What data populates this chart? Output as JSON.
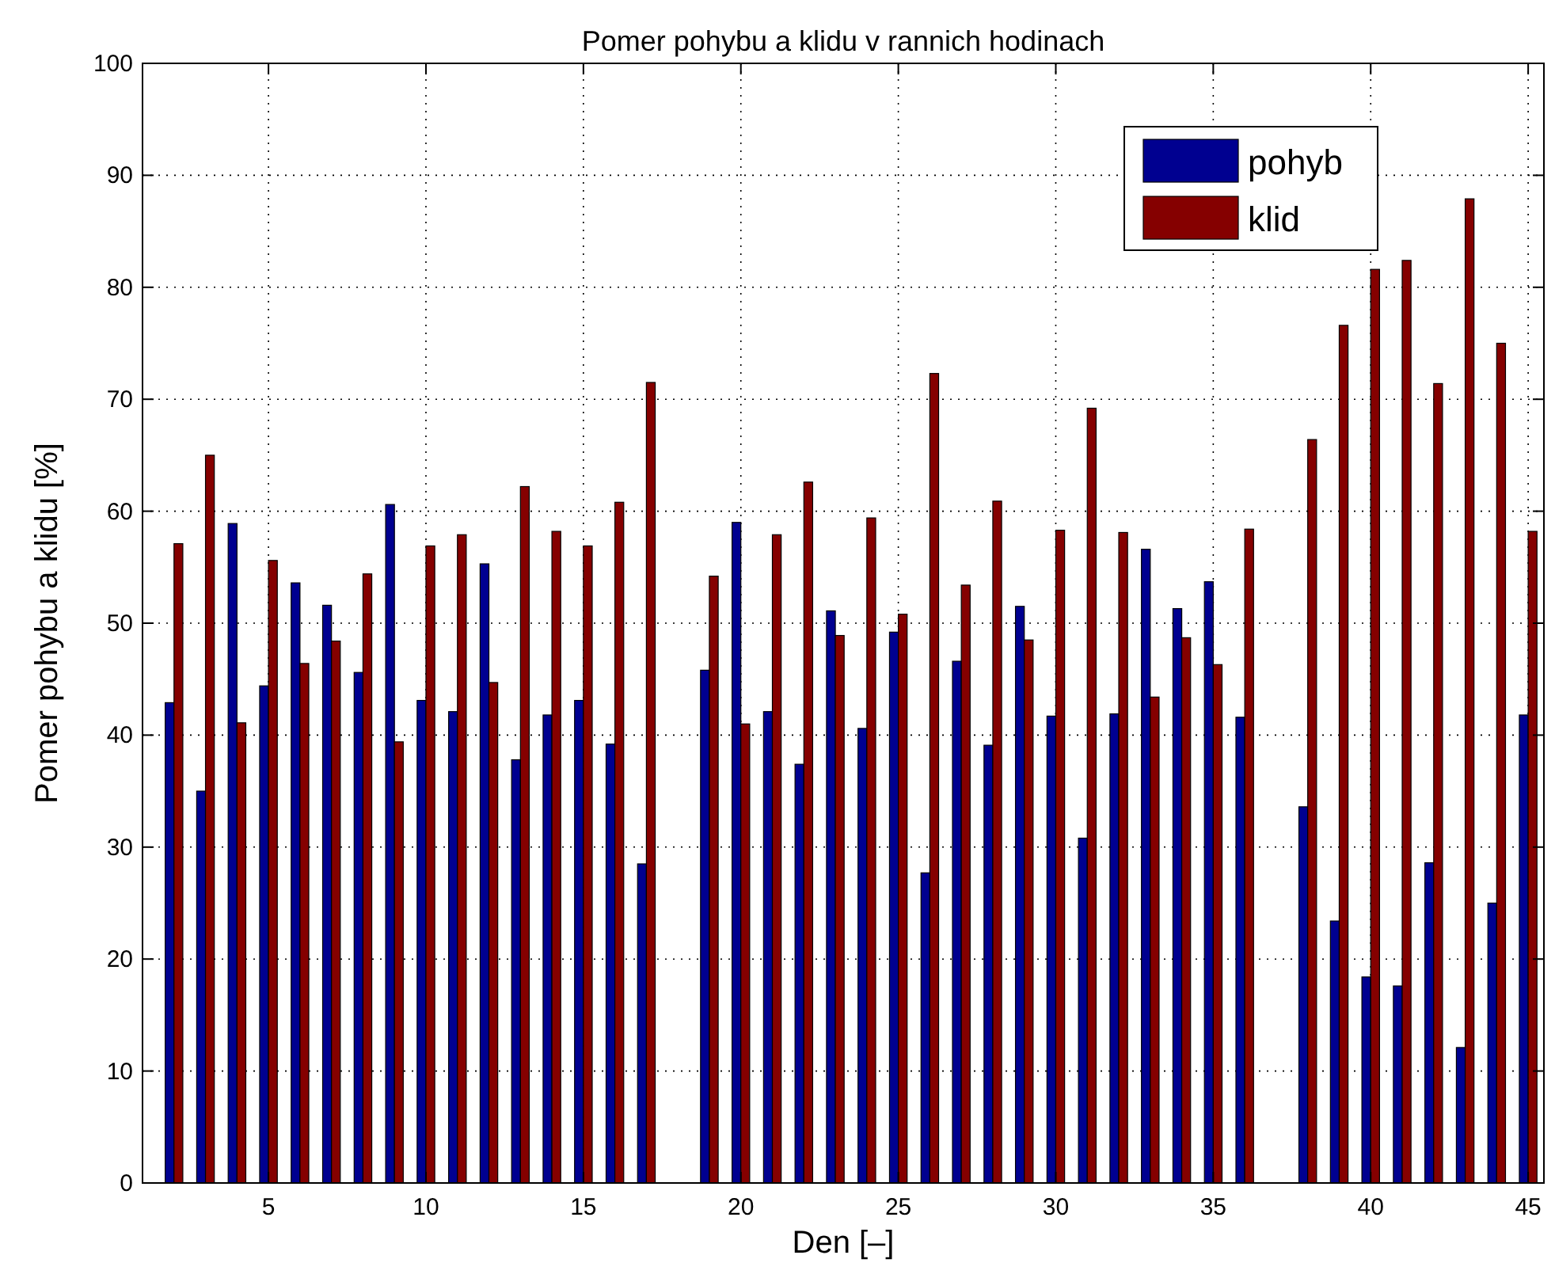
{
  "chart_data": {
    "type": "bar",
    "title": "Pomer pohybu a klidu v rannich hodinach",
    "xlabel": "Den [–]",
    "ylabel": "Pomer pohybu a klidu [%]",
    "x": [
      2,
      3,
      4,
      5,
      6,
      7,
      8,
      9,
      10,
      11,
      12,
      13,
      14,
      15,
      16,
      17,
      18,
      19,
      20,
      21,
      22,
      23,
      24,
      25,
      26,
      27,
      28,
      29,
      30,
      31,
      32,
      33,
      34,
      35,
      36,
      37,
      38,
      39,
      40,
      41,
      42,
      43,
      44,
      45
    ],
    "series": [
      {
        "name": "pohyb",
        "color": "#000090",
        "values": [
          42.9,
          35,
          58.9,
          44.4,
          53.6,
          51.6,
          45.6,
          60.6,
          43.1,
          42.1,
          55.3,
          37.8,
          41.8,
          43.1,
          39.2,
          28.5,
          0,
          45.8,
          59,
          42.1,
          37.4,
          51.1,
          40.6,
          49.2,
          27.7,
          46.6,
          39.1,
          51.5,
          41.7,
          30.8,
          41.9,
          56.6,
          51.3,
          53.7,
          41.6,
          0,
          33.6,
          23.4,
          18.4,
          17.6,
          28.6,
          12.1,
          25,
          41.8
        ]
      },
      {
        "name": "klid",
        "color": "#850000",
        "values": [
          57.1,
          65,
          41.1,
          55.6,
          46.4,
          48.4,
          54.4,
          39.4,
          56.9,
          57.9,
          44.7,
          62.2,
          58.2,
          56.9,
          60.8,
          71.5,
          0,
          54.2,
          41,
          57.9,
          62.6,
          48.9,
          59.4,
          50.8,
          72.3,
          53.4,
          60.9,
          48.5,
          58.3,
          69.2,
          58.1,
          43.4,
          48.7,
          46.3,
          58.4,
          0,
          66.4,
          76.6,
          81.6,
          82.4,
          71.4,
          87.9,
          75,
          58.2
        ]
      }
    ],
    "xlim": [
      1,
      45.5
    ],
    "xticks": [
      5,
      10,
      15,
      20,
      25,
      30,
      35,
      40,
      45
    ],
    "ylim": [
      0,
      100
    ],
    "yticks": [
      0,
      10,
      20,
      30,
      40,
      50,
      60,
      70,
      80,
      90,
      100
    ],
    "grid": true,
    "legend": "top right"
  }
}
